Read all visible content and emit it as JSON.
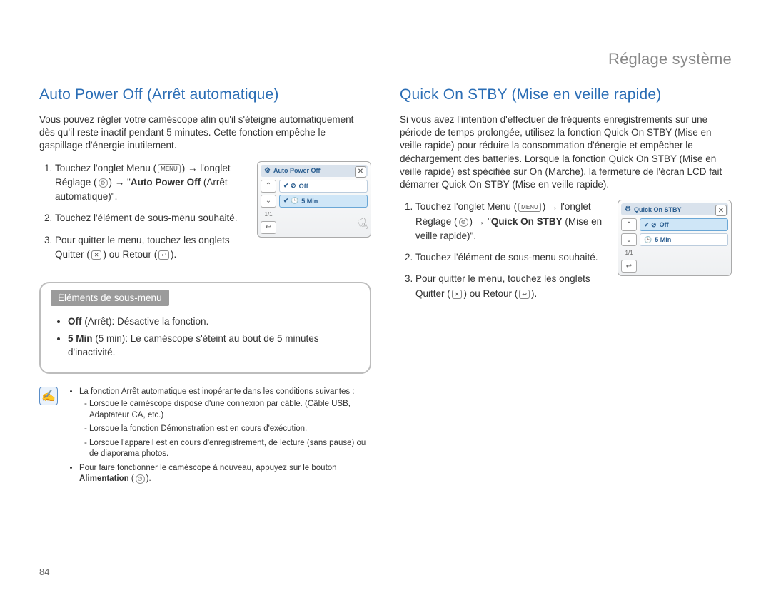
{
  "header": "Réglage système",
  "pageNumber": "84",
  "left": {
    "title": "Auto Power Off (Arrêt automatique)",
    "intro": "Vous pouvez régler votre caméscope afin qu'il s'éteigne automatiquement dès qu'il reste inactif pendant 5 minutes. Cette fonction empêche le gaspillage d'énergie inutilement.",
    "step1a": "Touchez l'onglet Menu (",
    "step1b": ") → l'onglet Réglage (",
    "step1c": ") → \"",
    "step1bold": "Auto Power Off",
    "step1d": " (Arrêt automatique)\".",
    "step2": "Touchez l'élément de sous-menu souhaité.",
    "step3a": "Pour quitter le menu, touchez les onglets Quitter (",
    "step3b": ") ou Retour (",
    "step3c": ").",
    "lcd": {
      "title": "Auto Power Off",
      "opt1": "Off",
      "opt2": "5 Min",
      "page": "1/1",
      "selectedIndex": 1
    },
    "submenuTag": "Éléments de sous-menu",
    "sub1bold": "Off",
    "sub1rest": " (Arrêt): Désactive la fonction.",
    "sub2bold": "5 Min",
    "sub2rest": " (5 min): Le caméscope s'éteint au bout de 5 minutes d'inactivité.",
    "note1": "La fonction Arrêt automatique est inopérante dans les conditions suivantes :",
    "note1a": "Lorsque le caméscope dispose d'une connexion par câble. (Câble USB, Adaptateur CA, etc.)",
    "note1b": "Lorsque la fonction Démonstration est en cours d'exécution.",
    "note1c": "Lorsque l'appareil est en cours d'enregistrement, de lecture (sans pause) ou de diaporama photos.",
    "note2a": "Pour faire fonctionner le caméscope à nouveau, appuyez sur le bouton ",
    "note2bold": "Alimentation",
    "note2b": " (",
    "note2c": ")."
  },
  "right": {
    "title": "Quick On STBY (Mise en veille rapide)",
    "intro": "Si vous avez l'intention d'effectuer de fréquents enregistrements sur une période de temps prolongée, utilisez la fonction Quick On STBY (Mise en veille rapide) pour réduire la consommation d'énergie et empêcher le déchargement des batteries. Lorsque la fonction Quick On STBY (Mise en veille rapide) est spécifiée sur On (Marche), la fermeture de l'écran LCD fait démarrer Quick On STBY (Mise en veille rapide).",
    "step1a": "Touchez l'onglet Menu (",
    "step1b": ") → l'onglet Réglage (",
    "step1c": ") → \"",
    "step1bold": "Quick On STBY",
    "step1d": " (Mise en veille rapide)\".",
    "step2": "Touchez l'élément de sous-menu souhaité.",
    "step3a": "Pour quitter le menu, touchez les onglets Quitter (",
    "step3b": ") ou Retour (",
    "step3c": ").",
    "lcd": {
      "title": "Quick On STBY",
      "opt1": "Off",
      "opt2": "5 Min",
      "page": "1/1",
      "selectedIndex": 0
    }
  },
  "icons": {
    "menuLabel": "MENU"
  }
}
